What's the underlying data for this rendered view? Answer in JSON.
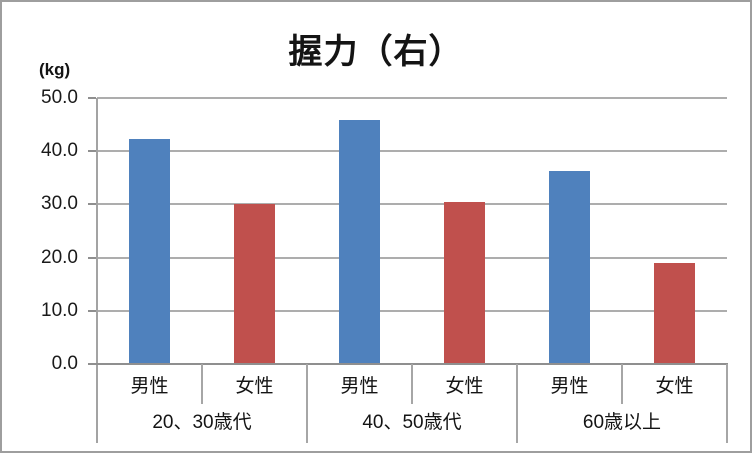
{
  "title": "握力（右）",
  "y_unit_label": "(kg)",
  "chart_data": {
    "type": "bar",
    "title": "握力（右）",
    "ylabel": "(kg)",
    "groups": [
      "20、30歳代",
      "40、50歳代",
      "60歳以上"
    ],
    "sub_categories": [
      "男性",
      "女性"
    ],
    "series": [
      {
        "id": "male",
        "name": "男性",
        "color": "#4f81bd",
        "values": [
          42.2,
          45.8,
          36.2
        ]
      },
      {
        "id": "female",
        "name": "女性",
        "color": "#c0504d",
        "values": [
          30.0,
          30.5,
          19.0
        ]
      }
    ],
    "ylim": [
      0,
      50
    ],
    "ytick_step": 10,
    "ytick_labels": [
      "0.0",
      "10.0",
      "20.0",
      "30.0",
      "40.0",
      "50.0"
    ],
    "grid": true,
    "legend": "none"
  },
  "colors": {
    "male_bar": "#4f81bd",
    "female_bar": "#c0504d",
    "gridline": "#adadad",
    "axis": "#8f8f8f",
    "text": "#141414",
    "background": "#ffffff",
    "frame_border": "#9e9e9e"
  }
}
